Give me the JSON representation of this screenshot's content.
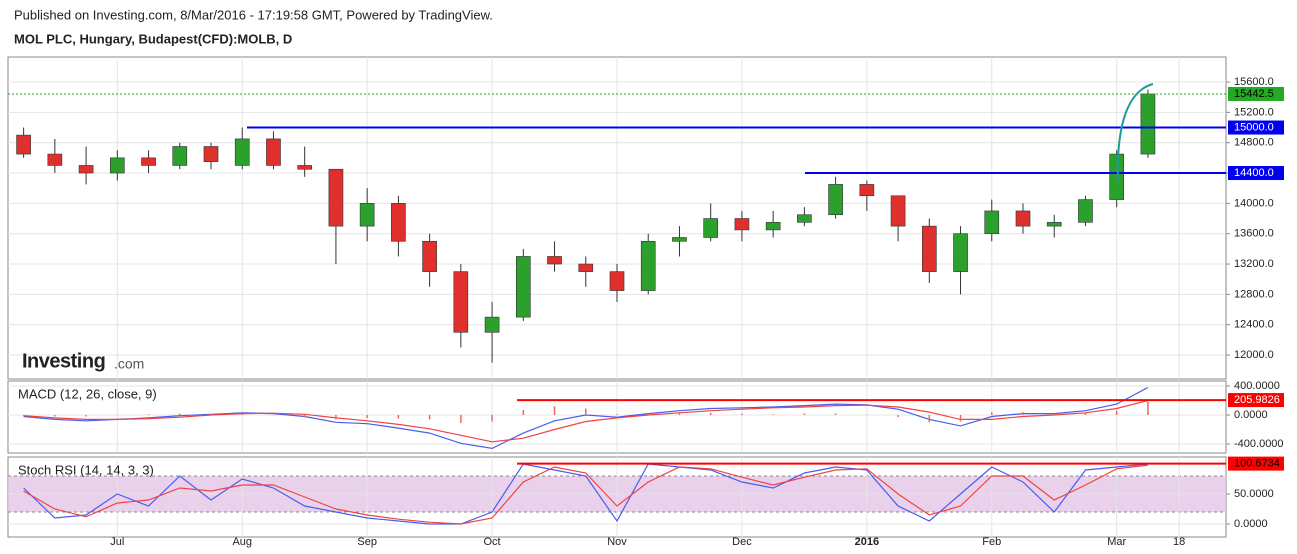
{
  "header": {
    "published": "Published on Investing.com, 8/Mar/2016 - 17:19:58 GMT, Powered by TradingView.",
    "symbol": "MOL PLC, Hungary, Budapest(CFD):MOLB, D",
    "logo": "Investing",
    "logo_suffix": ".com"
  },
  "chart_data": [
    {
      "type": "candlestick",
      "categories": [
        null,
        null,
        null,
        "Jul",
        null,
        null,
        null,
        "Aug",
        null,
        null,
        null,
        "Sep",
        null,
        null,
        null,
        "Oct",
        null,
        null,
        null,
        "Nov",
        null,
        null,
        null,
        "Dec",
        null,
        null,
        null,
        "2016",
        null,
        null,
        null,
        "Feb",
        null,
        null,
        null,
        "Mar",
        null,
        "18",
        null
      ],
      "open": [
        14900,
        14650,
        14500,
        14400,
        14600,
        14500,
        14750,
        14500,
        14850,
        14500,
        14450,
        13700,
        14000,
        13500,
        13100,
        12300,
        12500,
        13300,
        13200,
        13100,
        12850,
        13500,
        13550,
        13800,
        13650,
        13750,
        13850,
        14250,
        14100,
        13700,
        13100,
        13600,
        13900,
        13700,
        13750,
        14050,
        14650,
        null,
        null
      ],
      "high": [
        15000,
        14850,
        14750,
        14700,
        14700,
        14800,
        14800,
        15000,
        14950,
        14750,
        14450,
        14200,
        14100,
        13600,
        13200,
        12700,
        13400,
        13500,
        13300,
        13200,
        13600,
        13700,
        14000,
        13900,
        13900,
        13950,
        14350,
        14300,
        14100,
        13800,
        13700,
        14050,
        14000,
        13850,
        14100,
        14700,
        15500,
        null,
        null
      ],
      "low": [
        14600,
        14400,
        14250,
        14300,
        14400,
        14450,
        14450,
        14450,
        14450,
        14350,
        13200,
        13500,
        13300,
        12900,
        12100,
        11900,
        12450,
        13100,
        12900,
        12700,
        12800,
        13300,
        13500,
        13500,
        13550,
        13700,
        13800,
        13900,
        13500,
        12950,
        12800,
        13500,
        13600,
        13550,
        13700,
        13950,
        14600,
        null,
        null
      ],
      "close": [
        14650,
        14500,
        14400,
        14600,
        14500,
        14750,
        14550,
        14850,
        14500,
        14450,
        13700,
        14000,
        13500,
        13100,
        12300,
        12500,
        13300,
        13200,
        13100,
        12850,
        13500,
        13550,
        13800,
        13650,
        13750,
        13850,
        14250,
        14100,
        13700,
        13100,
        13600,
        13900,
        13700,
        13750,
        14050,
        14650,
        15442.5,
        null,
        null
      ],
      "up_color": "#2ca02c",
      "down_color": "#e0302e",
      "ylim": [
        11684,
        15930
      ],
      "yticks": [
        {
          "value": 12000,
          "label": "12000.0"
        },
        {
          "value": 12400,
          "label": "12400.0"
        },
        {
          "value": 12800,
          "label": "12800.0"
        },
        {
          "value": 13200,
          "label": "13200.0"
        },
        {
          "value": 13600,
          "label": "13600.0"
        },
        {
          "value": 14000,
          "label": "14000.0"
        },
        {
          "value": 14400,
          "label": "14400.0"
        },
        {
          "value": 14800,
          "label": "14800.0"
        },
        {
          "value": 15200,
          "label": "15200.0"
        },
        {
          "value": 15600,
          "label": "15600.0"
        }
      ],
      "levels": [
        {
          "value": 15000,
          "label": "15000.0",
          "color": "#0000ee"
        },
        {
          "value": 14400,
          "label": "14400.0",
          "color": "#0000ee"
        }
      ],
      "last_price": {
        "value": 15442.5,
        "label": "15442.5",
        "color": "#22aa22"
      },
      "grid": true
    },
    {
      "type": "macd",
      "title": "MACD (12, 26, close, 9)",
      "series": [
        {
          "name": "MACD",
          "color": "#4a5cf0",
          "values": [
            -20,
            -60,
            -80,
            -60,
            -40,
            -10,
            10,
            30,
            20,
            -20,
            -100,
            -120,
            -180,
            -250,
            -390,
            -460,
            -250,
            -80,
            0,
            -30,
            20,
            60,
            90,
            100,
            110,
            130,
            150,
            140,
            80,
            -60,
            -150,
            -20,
            20,
            20,
            60,
            150,
            380,
            null,
            null
          ]
        },
        {
          "name": "Signal",
          "color": "#ee4444",
          "values": [
            -10,
            -40,
            -60,
            -60,
            -50,
            -30,
            0,
            20,
            25,
            10,
            -40,
            -80,
            -130,
            -190,
            -280,
            -370,
            -320,
            -200,
            -90,
            -40,
            0,
            30,
            60,
            80,
            100,
            110,
            130,
            135,
            110,
            40,
            -60,
            -60,
            -20,
            0,
            30,
            90,
            200,
            null,
            null
          ]
        },
        {
          "name": "Histogram",
          "color": "#ee6666",
          "values": [
            -10,
            -20,
            -20,
            0,
            10,
            20,
            10,
            10,
            -5,
            -30,
            -60,
            -40,
            -50,
            -60,
            -110,
            -90,
            70,
            120,
            90,
            10,
            20,
            30,
            30,
            20,
            10,
            20,
            20,
            5,
            -30,
            -100,
            -90,
            40,
            40,
            20,
            30,
            60,
            180,
            null,
            null
          ]
        }
      ],
      "ylim": [
        -524,
        469
      ],
      "yticks": [
        {
          "value": 400,
          "label": "400.0000"
        },
        {
          "value": 0,
          "label": "0.0000"
        },
        {
          "value": -400,
          "label": "-400.0000"
        }
      ],
      "level": {
        "value": 205.9826,
        "label": "205.9826",
        "color": "#ff0000"
      }
    },
    {
      "type": "stoch",
      "title": "Stoch RSI (14, 14, 3, 3)",
      "series": [
        {
          "name": "K",
          "color": "#4a5cf0",
          "values": [
            60,
            10,
            15,
            50,
            30,
            80,
            40,
            75,
            60,
            30,
            20,
            10,
            5,
            0,
            0,
            20,
            100,
            90,
            80,
            5,
            100,
            95,
            90,
            70,
            60,
            85,
            95,
            90,
            30,
            5,
            50,
            95,
            70,
            20,
            90,
            95,
            100,
            null,
            null
          ]
        },
        {
          "name": "D",
          "color": "#ee4444",
          "values": [
            55,
            25,
            12,
            35,
            40,
            60,
            55,
            65,
            65,
            45,
            25,
            15,
            8,
            3,
            0,
            10,
            70,
            95,
            85,
            30,
            70,
            95,
            92,
            78,
            65,
            78,
            90,
            92,
            50,
            15,
            30,
            80,
            80,
            40,
            65,
            92,
            98,
            null,
            null
          ]
        }
      ],
      "ylim": [
        -21.7,
        111.7
      ],
      "yticks": [
        {
          "value": 50,
          "label": "50.0000"
        },
        {
          "value": 0,
          "label": "0.0000"
        }
      ],
      "band": [
        20,
        80
      ],
      "band_color": "#e3c6e6",
      "level": {
        "value": 100.6734,
        "label": "100.6734",
        "color": "#ff0000"
      }
    }
  ]
}
